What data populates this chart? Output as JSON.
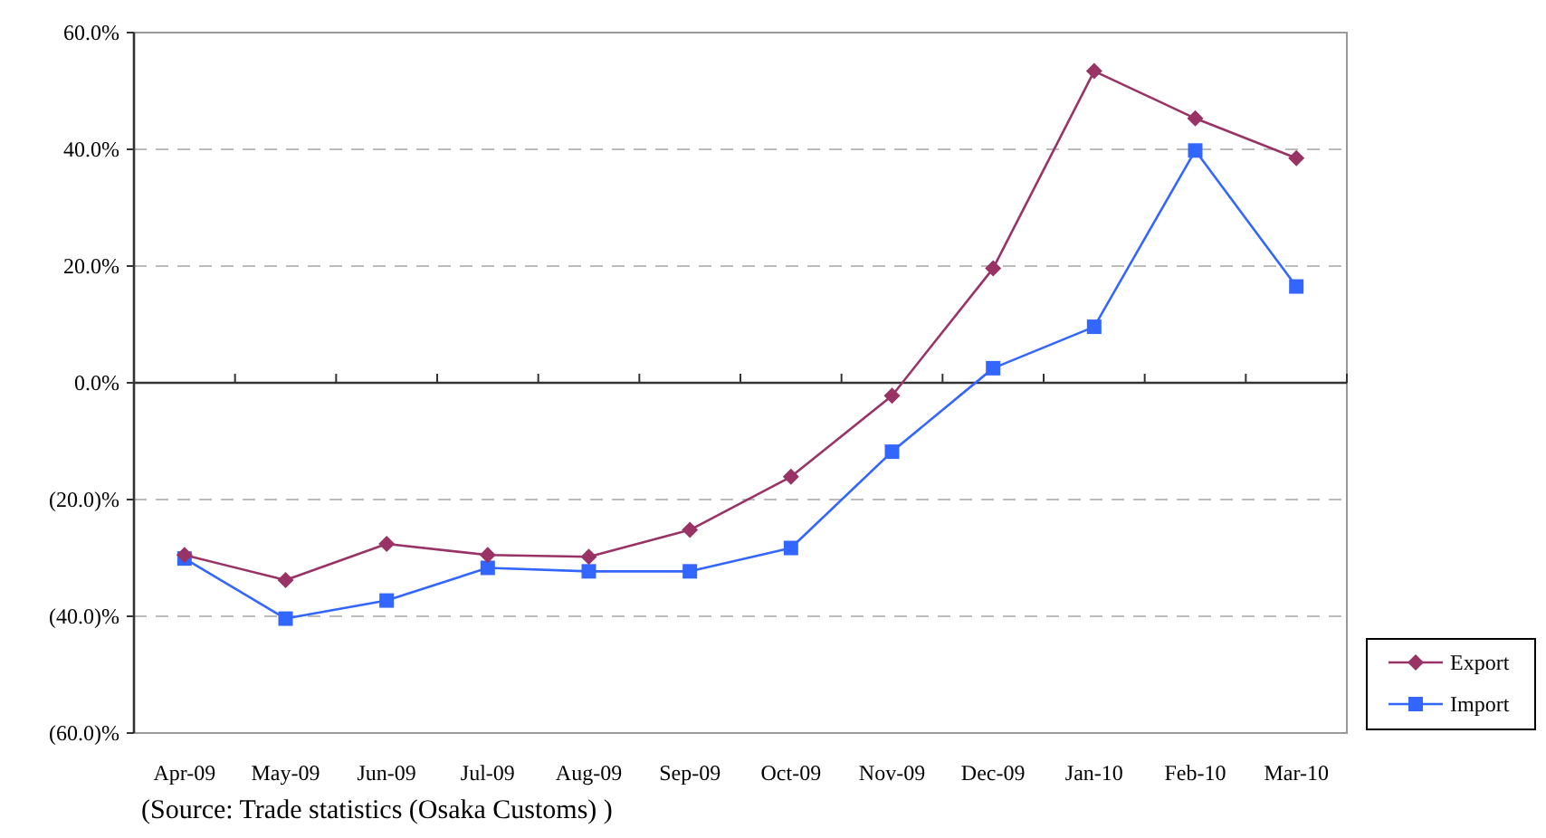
{
  "chart_data": {
    "type": "line",
    "categories": [
      "Apr-09",
      "May-09",
      "Jun-09",
      "Jul-09",
      "Aug-09",
      "Sep-09",
      "Oct-09",
      "Nov-09",
      "Dec-09",
      "Jan-10",
      "Feb-10",
      "Mar-10"
    ],
    "series": [
      {
        "name": "Export",
        "color": "#993366",
        "marker": "diamond",
        "values": [
          -29.5,
          -33.8,
          -27.6,
          -29.5,
          -29.8,
          -25.2,
          -16.1,
          -2.2,
          19.6,
          53.4,
          45.3,
          38.5
        ]
      },
      {
        "name": "Import",
        "color": "#3366ff",
        "marker": "square",
        "values": [
          -30.1,
          -40.4,
          -37.3,
          -31.7,
          -32.3,
          -32.3,
          -28.3,
          -11.8,
          2.5,
          9.6,
          39.8,
          16.5
        ]
      }
    ],
    "ylim": [
      -60,
      60
    ],
    "yticks": [
      {
        "value": -60,
        "label": "(60.0)%"
      },
      {
        "value": -40,
        "label": "(40.0)%"
      },
      {
        "value": -20,
        "label": "(20.0)%"
      },
      {
        "value": 0,
        "label": "0.0%"
      },
      {
        "value": 20,
        "label": "20.0%"
      },
      {
        "value": 40,
        "label": "40.0%"
      },
      {
        "value": 60,
        "label": "60.0%"
      }
    ],
    "grid": "y",
    "legend": "bottom right",
    "line_style": "solid",
    "annotations": [
      "(Source: Trade statistics (Osaka Customs) )"
    ]
  }
}
